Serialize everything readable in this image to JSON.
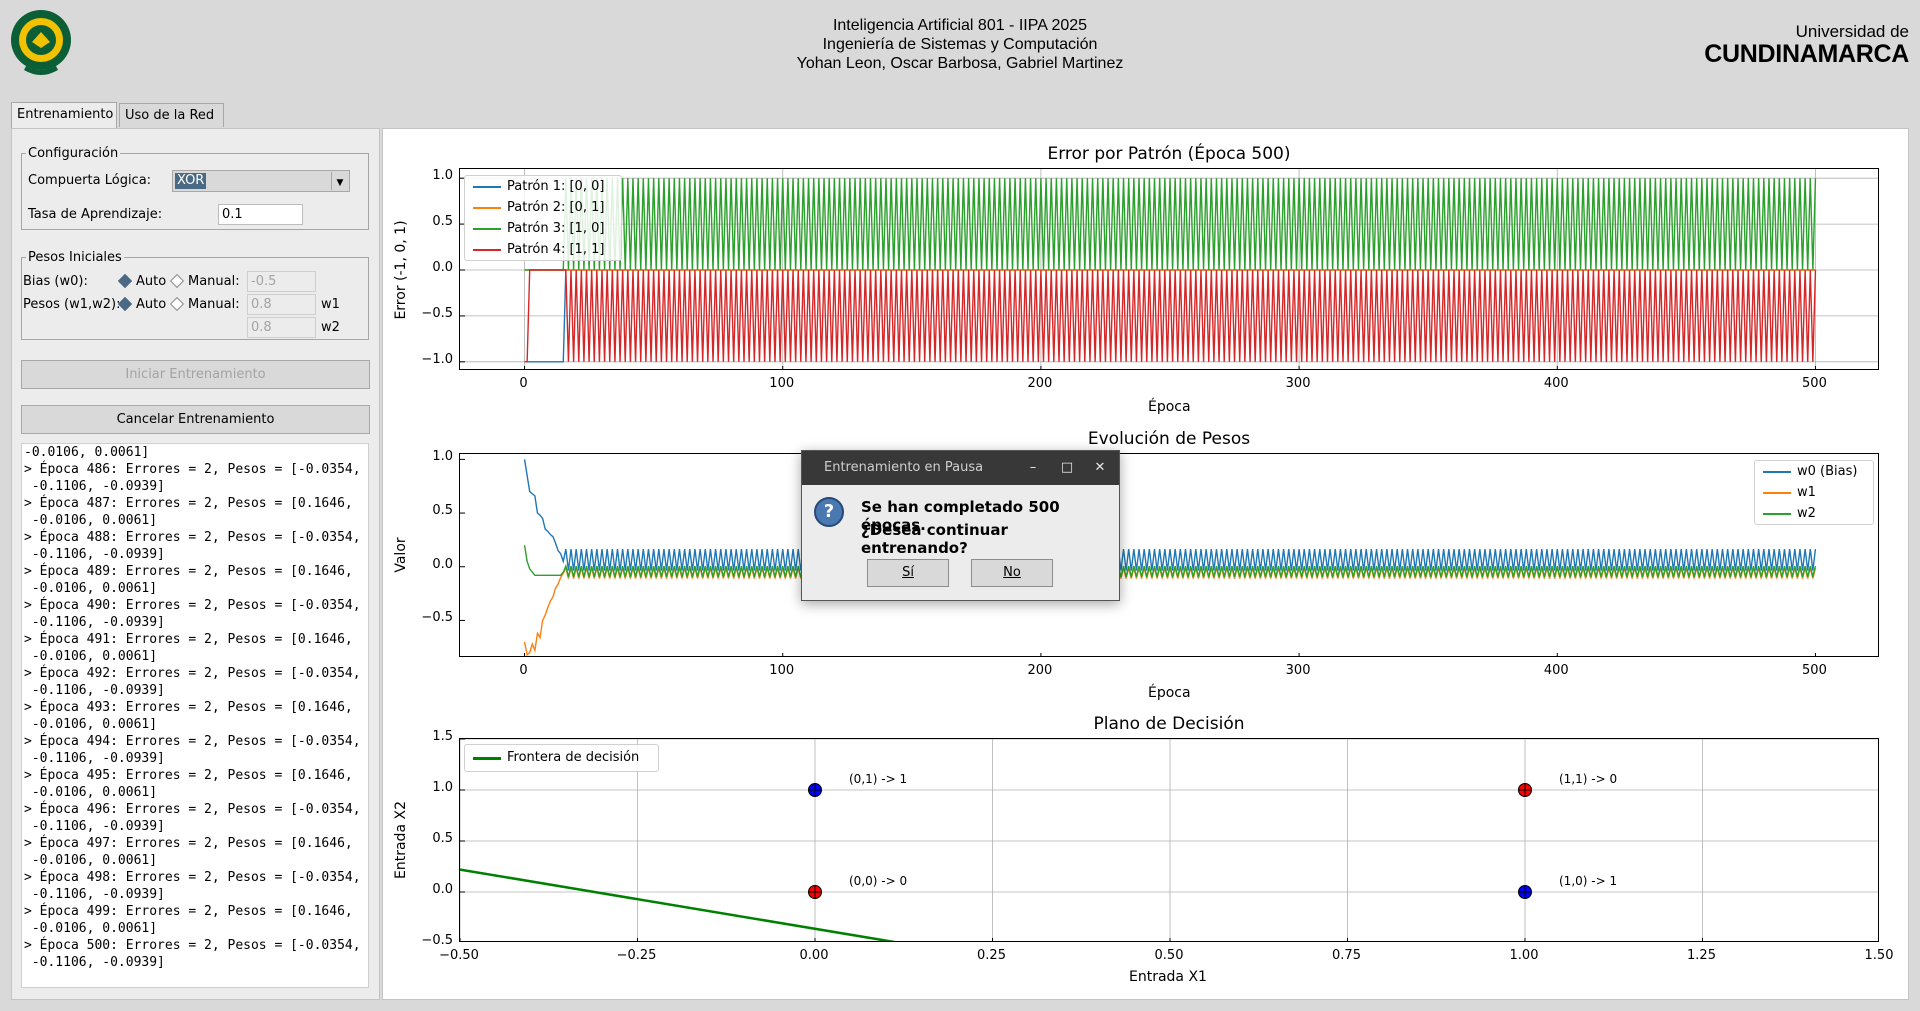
{
  "header": {
    "line1": "Inteligencia Artificial 801 - IIPA 2025",
    "line2": "Ingeniería de Sistemas y Computación",
    "line3": "Yohan Leon, Oscar Barbosa, Gabriel Martinez"
  },
  "brand": {
    "line1": "Universidad de",
    "line2": "CUNDINAMARCA",
    "logo_text": "UNIVERSIDAD DE CUNDINAMARCA"
  },
  "tabs": [
    {
      "label": "Entrenamiento",
      "active": true
    },
    {
      "label": "Uso de la Red",
      "active": false
    }
  ],
  "config": {
    "legend": "Configuración",
    "gate_label": "Compuerta Lógica:",
    "gate_value": "XOR",
    "lr_label": "Tasa de Aprendizaje:",
    "lr_value": "0.1"
  },
  "weights": {
    "legend": "Pesos Iniciales",
    "bias_label": "Bias (w0):",
    "pesos_label": "Pesos (w1,w2):",
    "auto_label": "Auto",
    "manual_label": "Manual:",
    "bias_manual": "-0.5",
    "w1_manual": "0.8",
    "w2_manual": "0.8",
    "w1_label": "w1",
    "w2_label": "w2"
  },
  "buttons": {
    "start": "Iniciar Entrenamiento",
    "cancel": "Cancelar Entrenamiento"
  },
  "log": "-0.0106, 0.0061]\n> Época 486: Errores = 2, Pesos = [-0.0354,\n -0.1106, -0.0939]\n> Época 487: Errores = 2, Pesos = [0.1646,\n -0.0106, 0.0061]\n> Época 488: Errores = 2, Pesos = [-0.0354,\n -0.1106, -0.0939]\n> Época 489: Errores = 2, Pesos = [0.1646,\n -0.0106, 0.0061]\n> Época 490: Errores = 2, Pesos = [-0.0354,\n -0.1106, -0.0939]\n> Época 491: Errores = 2, Pesos = [0.1646,\n -0.0106, 0.0061]\n> Época 492: Errores = 2, Pesos = [-0.0354,\n -0.1106, -0.0939]\n> Época 493: Errores = 2, Pesos = [0.1646,\n -0.0106, 0.0061]\n> Época 494: Errores = 2, Pesos = [-0.0354,\n -0.1106, -0.0939]\n> Época 495: Errores = 2, Pesos = [0.1646,\n -0.0106, 0.0061]\n> Época 496: Errores = 2, Pesos = [-0.0354,\n -0.1106, -0.0939]\n> Época 497: Errores = 2, Pesos = [0.1646,\n -0.0106, 0.0061]\n> Época 498: Errores = 2, Pesos = [-0.0354,\n -0.1106, -0.0939]\n> Época 499: Errores = 2, Pesos = [0.1646,\n -0.0106, 0.0061]\n> Época 500: Errores = 2, Pesos = [-0.0354,\n -0.1106, -0.0939]",
  "dialog": {
    "title": "Entrenamiento en Pausa",
    "msg1": "Se han completado 500 épocas.",
    "msg2": "¿Desea continuar entrenando?",
    "yes": "Sí",
    "no": "No",
    "min": "–",
    "max": "□",
    "close": "✕"
  },
  "chart_data": [
    {
      "type": "line",
      "title": "Error por Patrón (Época 500)",
      "xlabel": "Época",
      "ylabel": "Error (-1, 0, 1)",
      "xlim": [
        -25,
        525
      ],
      "ylim": [
        -1.1,
        1.1
      ],
      "xticks": [
        0,
        100,
        200,
        300,
        400,
        500
      ],
      "yticks": [
        1.0,
        0.5,
        0.0,
        -0.5,
        -1.0
      ],
      "ytick_labels": [
        "1.0",
        "0.5",
        "0.0",
        "−0.5",
        "−1.0"
      ],
      "grid": true,
      "legend_position": "upper-left",
      "series": [
        {
          "name": "Patrón 1: [0, 0]",
          "color": "#1f77b4",
          "pattern": "-1 for epochs 0-15, then 0"
        },
        {
          "name": "Patrón 2: [0, 1]",
          "color": "#ff7f0e",
          "pattern": "0 throughout"
        },
        {
          "name": "Patrón 3: [1, 0]",
          "color": "#2ca02c",
          "pattern": "alternates 0 / 1 each epoch from epoch 16 to 500"
        },
        {
          "name": "Patrón 4: [1, 1]",
          "color": "#d62728",
          "pattern": "-1/0 during epochs 0-15, then alternates -1 / 0 each epoch to 500"
        }
      ]
    },
    {
      "type": "line",
      "title": "Evolución de Pesos",
      "xlabel": "Época",
      "ylabel": "Valor",
      "xlim": [
        -25,
        525
      ],
      "ylim": [
        -0.85,
        1.05
      ],
      "xticks": [
        0,
        100,
        200,
        300,
        400,
        500
      ],
      "yticks": [
        1.0,
        0.5,
        0.0,
        -0.5
      ],
      "ytick_labels": [
        "1.0",
        "0.5",
        "0.0",
        "−0.5"
      ],
      "grid": false,
      "legend_position": "upper-right",
      "series": [
        {
          "name": "w0 (Bias)",
          "color": "#1f77b4",
          "start": 1.0,
          "oscillation": [
            -0.0354,
            0.1646
          ]
        },
        {
          "name": "w1",
          "color": "#ff7f0e",
          "start": -0.8,
          "oscillation": [
            -0.1106,
            -0.0106
          ]
        },
        {
          "name": "w2",
          "color": "#2ca02c",
          "start": 0.2,
          "oscillation": [
            -0.0939,
            0.0061
          ]
        }
      ]
    },
    {
      "type": "scatter",
      "title": "Plano de Decisión",
      "xlabel": "Entrada X1",
      "ylabel": "Entrada X2",
      "xlim": [
        -0.5,
        1.5
      ],
      "ylim": [
        -0.5,
        1.5
      ],
      "xticks": [
        -0.5,
        -0.25,
        0.0,
        0.25,
        0.5,
        0.75,
        1.0,
        1.25,
        1.5
      ],
      "xtick_labels": [
        "−0.50",
        "−0.25",
        "0.00",
        "0.25",
        "0.50",
        "0.75",
        "1.00",
        "1.25",
        "1.50"
      ],
      "yticks": [
        1.5,
        1.0,
        0.5,
        0.0,
        -0.5
      ],
      "ytick_labels": [
        "1.5",
        "1.0",
        "0.5",
        "0.0",
        "−0.5"
      ],
      "grid": true,
      "legend_position": "upper-left",
      "points": [
        {
          "x": 0,
          "y": 0,
          "target": 0,
          "label": "(0,0) -> 0",
          "color": "#ff0000"
        },
        {
          "x": 0,
          "y": 1,
          "target": 1,
          "label": "(0,1) -> 1",
          "color": "#0000ff"
        },
        {
          "x": 1,
          "y": 0,
          "target": 1,
          "label": "(1,0) -> 1",
          "color": "#0000ff"
        },
        {
          "x": 1,
          "y": 1,
          "target": 0,
          "label": "(1,1) -> 0",
          "color": "#ff0000"
        }
      ],
      "boundary": {
        "name": "Frontera de decisión",
        "color": "#008000",
        "x": [
          -0.5,
          0.12
        ],
        "y": [
          0.22,
          -0.5
        ]
      }
    }
  ]
}
